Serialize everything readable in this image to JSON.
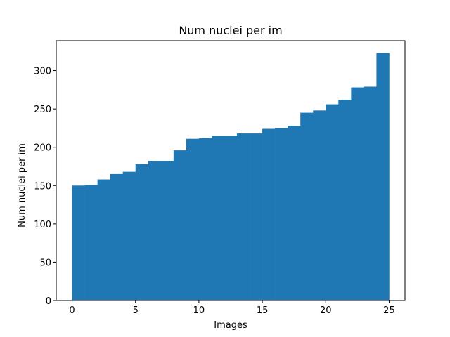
{
  "chart_data": {
    "type": "bar",
    "title": "Num nuclei per im",
    "xlabel": "Images",
    "ylabel": "Num nuclei per im",
    "x": [
      0,
      1,
      2,
      3,
      4,
      5,
      6,
      7,
      8,
      9,
      10,
      11,
      12,
      13,
      14,
      15,
      16,
      17,
      18,
      19,
      20,
      21,
      22,
      23,
      24
    ],
    "values": [
      150,
      151,
      158,
      165,
      168,
      178,
      182,
      182,
      196,
      211,
      212,
      215,
      215,
      218,
      218,
      224,
      225,
      228,
      245,
      248,
      256,
      262,
      278,
      279,
      323
    ],
    "bar_width": 1,
    "xlim": [
      -1.25,
      26.25
    ],
    "ylim": [
      0,
      339
    ],
    "xticks": [
      0,
      5,
      10,
      15,
      20,
      25
    ],
    "yticks": [
      0,
      50,
      100,
      150,
      200,
      250,
      300
    ],
    "bar_color": "#1f77b4",
    "grid": false,
    "legend": "none"
  }
}
